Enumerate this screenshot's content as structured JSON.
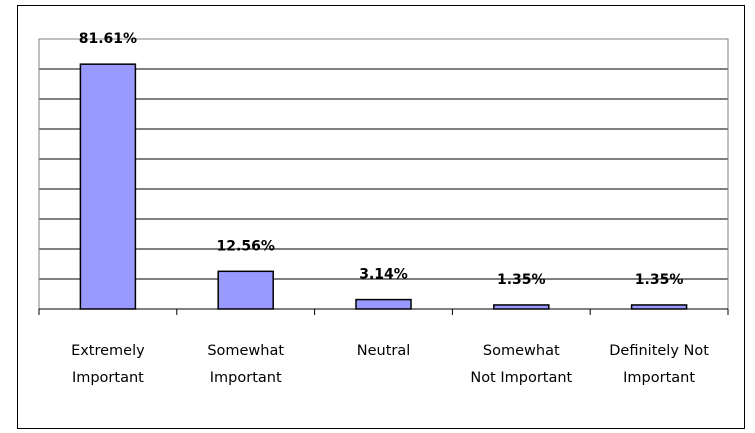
{
  "chart_data": {
    "type": "bar",
    "title": "",
    "xlabel": "",
    "ylabel": "",
    "categories": [
      [
        "Extremely",
        "Important"
      ],
      [
        "Somewhat",
        "Important"
      ],
      [
        "Neutral"
      ],
      [
        "Somewhat",
        "Not Important"
      ],
      [
        "Definitely Not",
        "Important"
      ]
    ],
    "values": [
      81.61,
      12.56,
      3.14,
      1.35,
      1.35
    ],
    "data_labels": [
      "81.61%",
      "12.56%",
      "3.14%",
      "1.35%",
      "1.35%"
    ],
    "ylim": [
      0,
      90
    ],
    "y_gridlines": 9,
    "grid": true,
    "legend": "none",
    "bar_color": "#9999ff",
    "bar_edge_color": "#000000",
    "plot_border_color": "#808080",
    "gridline_color": "#000000"
  }
}
